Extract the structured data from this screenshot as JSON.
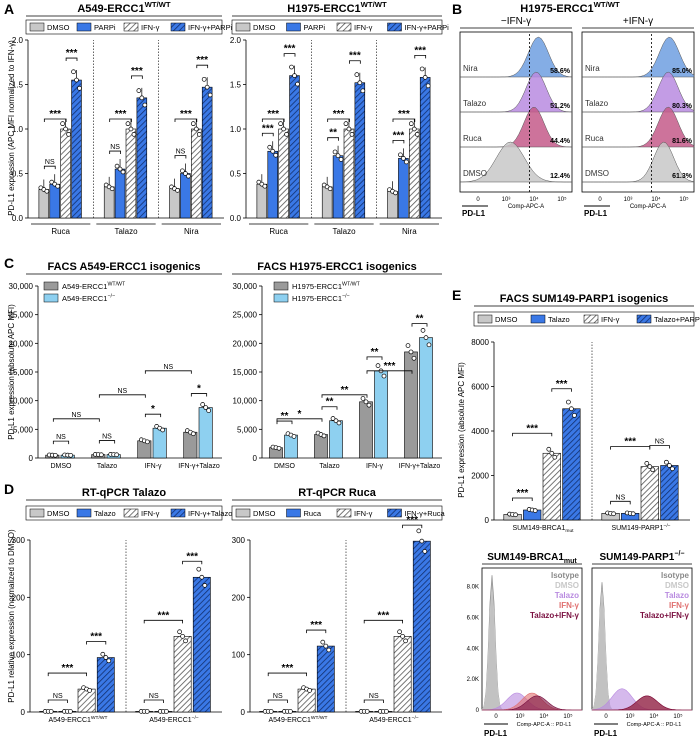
{
  "colors": {
    "dmso": "#c8c8c8",
    "blue": "#3a78e6",
    "lightblue": "#8ed0f0",
    "hatch": "#777777",
    "grey2": "#9a9a9a",
    "purple": "#9966dd",
    "red": "#e05050",
    "maroon": "#7a1040"
  },
  "chart_data": [
    {
      "panel": "A",
      "type": "bar",
      "title_base": "A549-ERCC1",
      "title_sup": "WT/WT",
      "ylabel": "PD-L1 expression (APC MFI normalized to IFN-γ)",
      "ylim": [
        0,
        2.0
      ],
      "yticks": [
        "0.0",
        "0.5",
        "1.0",
        "1.5",
        "2.0"
      ],
      "legend": [
        "DMSO",
        "PARPi",
        "IFN-γ",
        "IFN-γ+PARPi"
      ],
      "groups": [
        "Ruca",
        "Talazo",
        "Nira"
      ],
      "values": [
        [
          0.32,
          0.38,
          1.0,
          1.55
        ],
        [
          0.35,
          0.55,
          1.0,
          1.35
        ],
        [
          0.33,
          0.5,
          1.0,
          1.47
        ]
      ],
      "sig": [
        [
          "NS",
          "***",
          "***"
        ],
        [
          "NS",
          "***",
          "***"
        ],
        [
          "NS",
          "***",
          "***"
        ]
      ]
    },
    {
      "panel": "A2",
      "type": "bar",
      "title_base": "H1975-ERCC1",
      "title_sup": "WT/WT",
      "ylim": [
        0,
        2.0
      ],
      "yticks": [
        "0.0",
        "0.5",
        "1.0",
        "1.5",
        "2.0"
      ],
      "legend": [
        "DMSO",
        "PARPi",
        "IFN-γ",
        "IFN-γ+PARPi"
      ],
      "groups": [
        "Ruca",
        "Talazo",
        "Nira"
      ],
      "values": [
        [
          0.38,
          0.75,
          1.0,
          1.6
        ],
        [
          0.35,
          0.7,
          1.0,
          1.52
        ],
        [
          0.3,
          0.67,
          1.0,
          1.58
        ]
      ],
      "sig": [
        [
          "***",
          "***",
          "***"
        ],
        [
          "**",
          "***",
          "***"
        ],
        [
          "***",
          "***",
          "***"
        ]
      ]
    },
    {
      "panel": "B",
      "type": "histogram",
      "title_base": "H1975-ERCC1",
      "title_sup": "WT/WT",
      "columns": [
        "−IFN-γ",
        "+IFN-γ"
      ],
      "rows": [
        "Nira",
        "Talazo",
        "Ruca",
        "DMSO"
      ],
      "percents": [
        [
          "58.6%",
          "51.2%",
          "44.4%",
          "12.4%"
        ],
        [
          "85.0%",
          "80.3%",
          "81.6%",
          "61.3%"
        ]
      ],
      "xlabel": "Comp-APC-A",
      "marker": "PD-L1",
      "xticks": [
        "0",
        "10³",
        "10⁴",
        "10⁵"
      ]
    },
    {
      "panel": "C",
      "type": "bar",
      "title": "FACS A549-ERCC1 isogenics",
      "ylabel": "PD-L1 expression (absolute APC MFI)",
      "ylim": [
        0,
        30000
      ],
      "yticks": [
        "0",
        "5,000",
        "10,000",
        "15,000",
        "20,000",
        "25,000",
        "30,000"
      ],
      "legend_base": "A549-ERCC1",
      "legend_sup": [
        "WT/WT",
        "−/−"
      ],
      "groups": [
        "DMSO",
        "Talazo",
        "IFN-γ",
        "IFN-γ+Talazo"
      ],
      "values": [
        [
          500,
          500
        ],
        [
          600,
          600
        ],
        [
          3000,
          5200
        ],
        [
          4500,
          8800
        ]
      ],
      "sig": [
        "NS",
        "NS",
        "*",
        "*"
      ],
      "cross_sig": [
        "NS",
        "NS",
        "NS",
        "*"
      ]
    },
    {
      "panel": "C2",
      "type": "bar",
      "title": "FACS H1975-ERCC1 isogenics",
      "ylim": [
        0,
        30000
      ],
      "yticks": [
        "0",
        "5,000",
        "10,000",
        "15,000",
        "20,000",
        "25,000",
        "30,000"
      ],
      "legend_base": "H1975-ERCC1",
      "legend_sup": [
        "WT/WT",
        "−/−"
      ],
      "groups": [
        "DMSO",
        "Talazo",
        "IFN-γ",
        "IFN-γ+Talazo"
      ],
      "values": [
        [
          1800,
          4000
        ],
        [
          4100,
          6500
        ],
        [
          9800,
          15200
        ],
        [
          18500,
          21000
        ]
      ],
      "sig": [
        "**",
        "**",
        "**",
        "**"
      ],
      "cross_sig": [
        "*",
        "**",
        "***",
        "***"
      ]
    },
    {
      "panel": "D",
      "type": "bar",
      "title": "RT-qPCR Talazo",
      "ylabel": "PD-L1 relative expression (normalized to DMSO)",
      "ylim": [
        0,
        300
      ],
      "yticks": [
        "0",
        "100",
        "200",
        "300"
      ],
      "legend": [
        "DMSO",
        "Talazo",
        "IFN-γ",
        "IFN-γ+Talazo"
      ],
      "groups_base": "A549-ERCC1",
      "groups_sup": [
        "WT/WT",
        "−/−"
      ],
      "values": [
        [
          1,
          1,
          40,
          95
        ],
        [
          1,
          1,
          132,
          235
        ]
      ],
      "sig": [
        [
          "NS",
          "***",
          "***"
        ],
        [
          "NS",
          "***",
          "***"
        ]
      ]
    },
    {
      "panel": "D2",
      "type": "bar",
      "title": "RT-qPCR Ruca",
      "ylim": [
        0,
        300
      ],
      "yticks": [
        "0",
        "100",
        "200",
        "300"
      ],
      "legend": [
        "DMSO",
        "Ruca",
        "IFN-γ",
        "IFN-γ+Ruca"
      ],
      "groups_base": "A549-ERCC1",
      "groups_sup": [
        "WT/WT",
        "−/−"
      ],
      "values": [
        [
          1,
          1,
          40,
          115
        ],
        [
          1,
          1,
          132,
          298
        ]
      ],
      "sig": [
        [
          "NS",
          "***",
          "***"
        ],
        [
          "NS",
          "***",
          "***"
        ]
      ]
    },
    {
      "panel": "E",
      "type": "bar",
      "title": "FACS SUM149-PARP1 isogenics",
      "ylabel": "PD-L1 expression (absolute APC MFI)",
      "ylim": [
        0,
        8000
      ],
      "yticks": [
        "0",
        "2000",
        "4000",
        "6000",
        "8000"
      ],
      "legend": [
        "DMSO",
        "Talazo",
        "IFN-γ",
        "Talazo+PARPi"
      ],
      "groups": [
        "SUM149-BRCA1",
        "SUM149-PARP1"
      ],
      "groups_sub": [
        "mut",
        ""
      ],
      "groups_sup": [
        "",
        "−/−"
      ],
      "values": [
        [
          250,
          450,
          3000,
          5000
        ],
        [
          300,
          300,
          2400,
          2450
        ]
      ],
      "sig": [
        [
          "***",
          "***",
          "***"
        ],
        [
          "NS",
          "***",
          "NS"
        ]
      ]
    },
    {
      "panel": "E2",
      "type": "histogram",
      "titles": [
        "SUM149-BRCA1",
        "SUM149-PARP1"
      ],
      "titles_sub": [
        "mut",
        ""
      ],
      "titles_sup": [
        "",
        "−/−"
      ],
      "legend": [
        "Isotype",
        "DMSO",
        "Talazo",
        "IFN-γ",
        "Talazo+IFN-γ"
      ],
      "yticks": [
        "0",
        "2.0K",
        "4.0K",
        "6.0K",
        "8.0K"
      ],
      "xticks": [
        "0",
        "10³",
        "10⁴",
        "10⁵"
      ],
      "xlabel": "Comp-APC-A :: PD-L1",
      "marker": "PD-L1"
    }
  ],
  "labels": {
    "A": "A",
    "B": "B",
    "C": "C",
    "D": "D",
    "E": "E"
  }
}
